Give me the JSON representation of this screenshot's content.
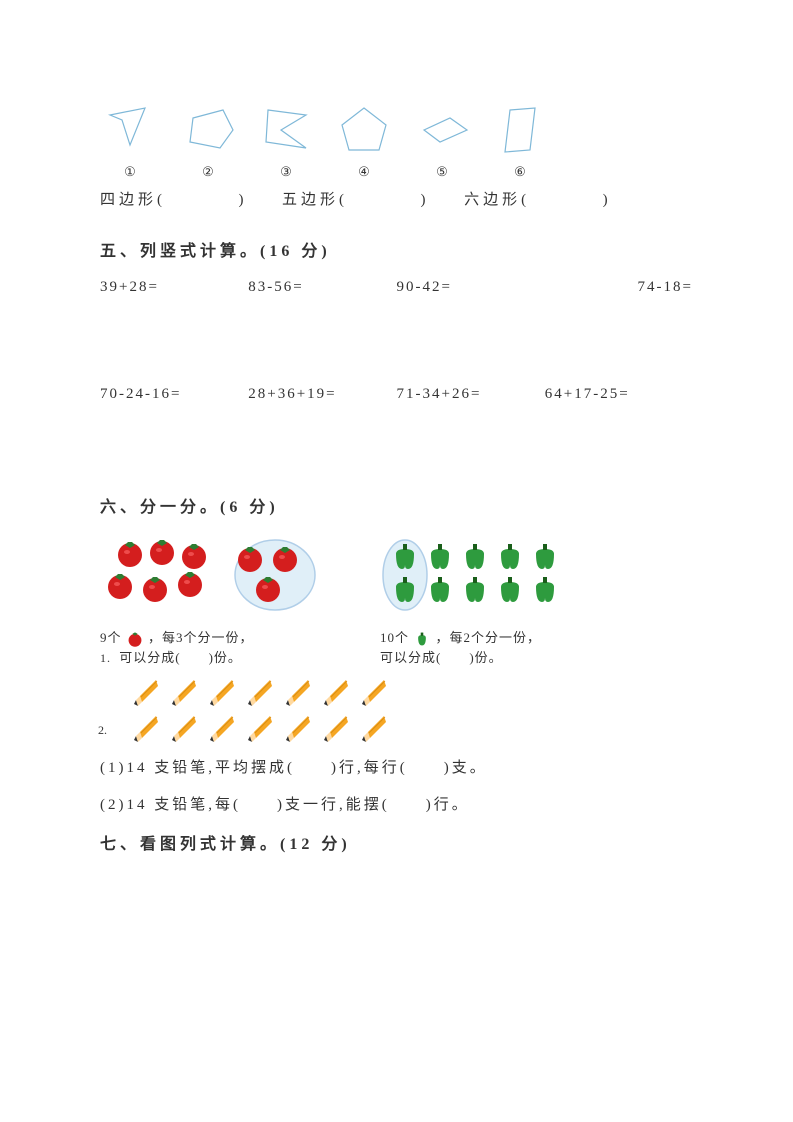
{
  "shapes": {
    "stroke_color": "#7fb8d8",
    "stroke_width": 1.2,
    "labels": [
      "①",
      "②",
      "③",
      "④",
      "⑤",
      "⑥"
    ],
    "paths": [
      "M 10,15 L 45,8 L 30,45 L 22,20 Z",
      "M 15,18 L 45,10 L 55,30 L 42,48 L 12,42 Z",
      "M 12,10 L 50,15 L 25,30 L 50,48 L 10,42 Z",
      "M 30,8 L 52,25 L 45,50 L 15,50 L 8,25 Z",
      "M 12,30 L 38,18 L 55,30 L 28,42 Z",
      "M 20,10 L 45,8 L 40,50 L 15,52 Z"
    ]
  },
  "shape_answer": {
    "quad": "四边形(",
    "penta": "五边形(",
    "hexa": "六边形(",
    "close": ")"
  },
  "section5": {
    "header": "五、列竖式计算。(16 分)",
    "row1": [
      "39+28=",
      "83-56=",
      "90-42=",
      "74-18="
    ],
    "row2": [
      "70-24-16=",
      "28+36+19=",
      "71-34+26=",
      "64+17-25="
    ]
  },
  "section6": {
    "header": "六、分一分。(6 分)",
    "tomato_caption_1": "9个",
    "tomato_caption_2": "，每3个分一份，",
    "tomato_caption_3": "可以分成(　　)份。",
    "pepper_caption_1": "10个",
    "pepper_caption_2": "，每2个分一份，",
    "pepper_caption_3": "可以分成(　　)份。",
    "q1_num": "1.",
    "q2_num": "2.",
    "tomato_color": "#d41e1e",
    "tomato_leaf": "#2e7d32",
    "pepper_color": "#2e9b3e",
    "pepper_stem": "#1a5f1a",
    "pencil_body": "#f5a623",
    "pencil_tip": "#333333",
    "pencil_wood": "#ffd9a0",
    "circle_bg": "#b8d4e8"
  },
  "section6_questions": {
    "q1": "(1)14 支铅笔,平均摆成(　　)行,每行(　　)支。",
    "q2": "(2)14 支铅笔,每(　　)支一行,能摆(　　)行。"
  },
  "section7": {
    "header": "七、看图列式计算。(12 分)"
  }
}
